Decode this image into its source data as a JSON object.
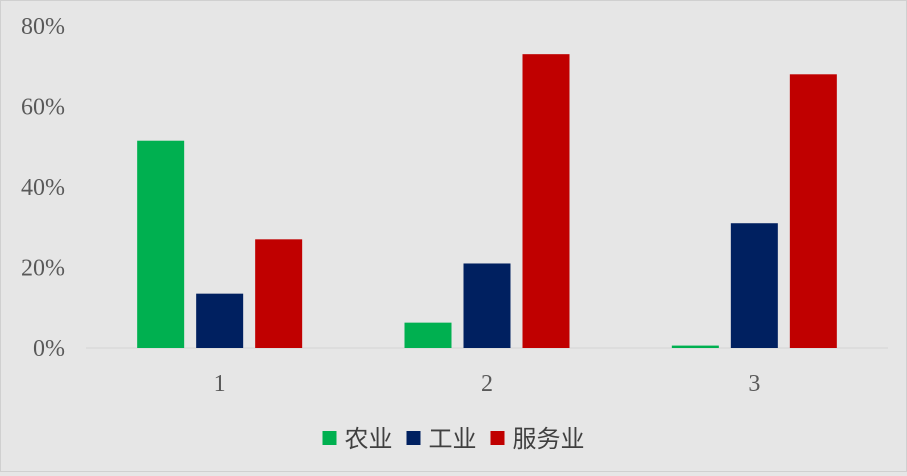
{
  "chart_data": {
    "type": "bar",
    "categories": [
      "1",
      "2",
      "3"
    ],
    "series": [
      {
        "name": "农业",
        "color": "#00b050",
        "values": [
          51.5,
          6.3,
          0.6
        ]
      },
      {
        "name": "工业",
        "color": "#002060",
        "values": [
          13.5,
          21.0,
          31.0
        ]
      },
      {
        "name": "服务业",
        "color": "#c00000",
        "values": [
          27.0,
          73.0,
          68.0
        ]
      }
    ],
    "ylim": [
      0,
      80
    ],
    "yticks": [
      "0%",
      "20%",
      "40%",
      "60%",
      "80%"
    ],
    "y_unit": "%",
    "grid": false,
    "legend_position": "bottom"
  }
}
